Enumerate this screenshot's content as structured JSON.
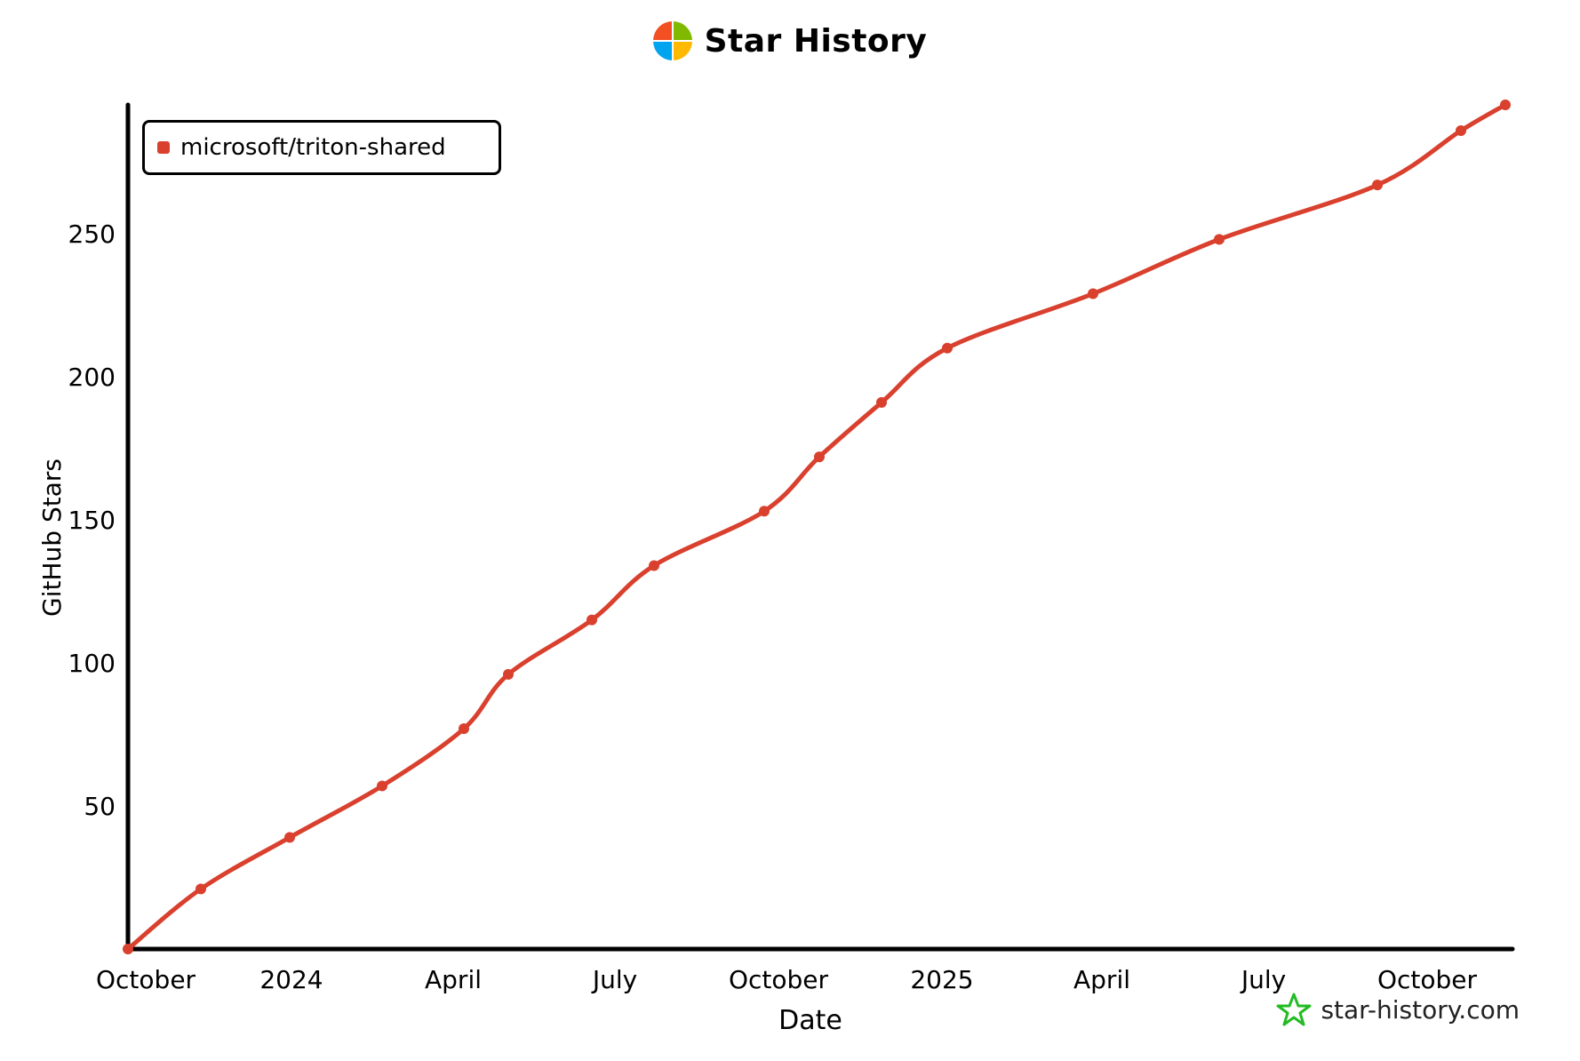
{
  "header": {
    "title": "Star History",
    "logo_colors": [
      "#f25022",
      "#7fba00",
      "#00a4ef",
      "#ffb900"
    ]
  },
  "watermark": {
    "text": "star-history.com",
    "icon": "star-history-logo-icon",
    "color": "#22bb22"
  },
  "chart_data": {
    "type": "line",
    "xlabel": "Date",
    "ylabel": "GitHub Stars",
    "ylim": [
      0,
      295
    ],
    "yticks": [
      50,
      100,
      150,
      200,
      250
    ],
    "x_tick_labels": [
      "October",
      "2024",
      "April",
      "July",
      "October",
      "2025",
      "April",
      "July",
      "October"
    ],
    "legend": {
      "position": "top-left"
    },
    "grid": false,
    "series": [
      {
        "name": "microsoft/triton-shared",
        "color": "#d9402e",
        "x": [
          "2023-10-01",
          "2023-11-11",
          "2023-12-31",
          "2024-02-21",
          "2024-04-07",
          "2024-05-02",
          "2024-06-18",
          "2024-07-23",
          "2024-09-23",
          "2024-10-24",
          "2024-11-28",
          "2025-01-04",
          "2025-03-27",
          "2025-06-06",
          "2025-09-03",
          "2025-10-20",
          "2025-11-14"
        ],
        "values": [
          0,
          21,
          39,
          57,
          77,
          96,
          115,
          134,
          153,
          172,
          191,
          210,
          229,
          248,
          267,
          286,
          295
        ]
      }
    ]
  }
}
